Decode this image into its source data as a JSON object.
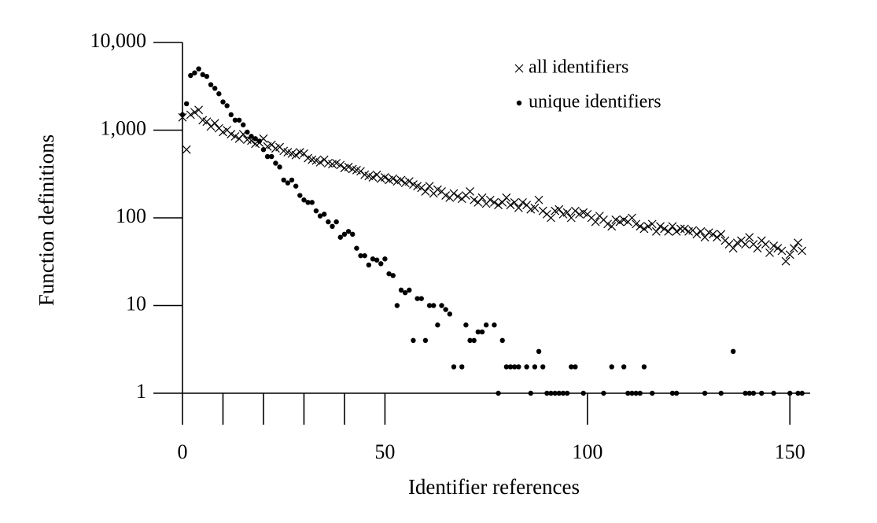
{
  "chart_data": {
    "type": "scatter",
    "x_label": "Identifier references",
    "y_label": "Function definitions",
    "yscale": "log",
    "xlim": [
      0,
      155
    ],
    "ylim": [
      1,
      10000
    ],
    "xticks": [
      0,
      50,
      100,
      150
    ],
    "xminor_ticks": [
      10,
      20,
      30,
      40
    ],
    "yticks": [
      {
        "value": 10000,
        "label": "10,000"
      },
      {
        "value": 1000,
        "label": "1,000"
      },
      100,
      10,
      1
    ],
    "legend": "upper right",
    "series": [
      {
        "name": "all identifiers",
        "marker": "x",
        "color": "#000000",
        "x": [
          0,
          1,
          2,
          3,
          4,
          5,
          6,
          7,
          8,
          9,
          10,
          11,
          12,
          13,
          14,
          15,
          16,
          17,
          18,
          19,
          20,
          21,
          22,
          23,
          24,
          25,
          26,
          27,
          28,
          29,
          30,
          31,
          32,
          33,
          34,
          35,
          36,
          37,
          38,
          39,
          40,
          41,
          42,
          43,
          44,
          45,
          46,
          47,
          48,
          49,
          50,
          51,
          52,
          53,
          54,
          55,
          56,
          57,
          58,
          59,
          60,
          61,
          62,
          63,
          64,
          65,
          66,
          67,
          68,
          69,
          70,
          71,
          72,
          73,
          74,
          75,
          76,
          77,
          78,
          79,
          80,
          81,
          82,
          83,
          84,
          85,
          86,
          87,
          88,
          89,
          90,
          91,
          92,
          93,
          94,
          95,
          96,
          97,
          98,
          99,
          100,
          101,
          102,
          103,
          104,
          105,
          106,
          107,
          108,
          109,
          110,
          111,
          112,
          113,
          114,
          115,
          116,
          117,
          118,
          119,
          120,
          121,
          122,
          123,
          124,
          125,
          126,
          127,
          128,
          129,
          130,
          131,
          132,
          133,
          134,
          135,
          136,
          137,
          138,
          139,
          140,
          141,
          142,
          143,
          144,
          145,
          146,
          147,
          148,
          149,
          150,
          151,
          152,
          153
        ],
        "values": [
          1400,
          600,
          1500,
          1600,
          1700,
          1300,
          1250,
          1100,
          1200,
          1050,
          950,
          1000,
          900,
          850,
          800,
          900,
          780,
          760,
          700,
          720,
          800,
          650,
          680,
          620,
          640,
          580,
          560,
          540,
          520,
          560,
          540,
          480,
          460,
          450,
          430,
          460,
          420,
          410,
          420,
          400,
          370,
          380,
          360,
          350,
          340,
          310,
          300,
          290,
          310,
          280,
          290,
          270,
          280,
          260,
          270,
          250,
          260,
          240,
          230,
          220,
          200,
          230,
          190,
          210,
          200,
          180,
          170,
          190,
          175,
          165,
          180,
          200,
          160,
          150,
          170,
          145,
          160,
          150,
          140,
          150,
          170,
          140,
          150,
          130,
          150,
          140,
          125,
          130,
          160,
          120,
          110,
          100,
          120,
          125,
          110,
          115,
          100,
          120,
          110,
          115,
          110,
          100,
          90,
          105,
          95,
          85,
          80,
          95,
          90,
          95,
          90,
          100,
          85,
          80,
          75,
          80,
          85,
          70,
          80,
          75,
          70,
          80,
          70,
          75,
          75,
          70,
          72,
          65,
          70,
          60,
          68,
          65,
          60,
          65,
          55,
          50,
          45,
          52,
          55,
          50,
          60,
          50,
          45,
          55,
          50,
          40,
          48,
          45,
          42,
          32,
          38,
          45,
          52,
          42
        ]
      },
      {
        "name": "unique identifiers",
        "marker": "dot",
        "color": "#000000",
        "x": [
          0,
          1,
          2,
          3,
          4,
          5,
          6,
          7,
          8,
          9,
          10,
          11,
          12,
          13,
          14,
          15,
          16,
          17,
          18,
          19,
          20,
          21,
          22,
          23,
          24,
          25,
          26,
          27,
          28,
          29,
          30,
          31,
          32,
          33,
          34,
          35,
          36,
          37,
          38,
          39,
          40,
          41,
          42,
          43,
          44,
          45,
          46,
          47,
          48,
          49,
          50,
          51,
          52,
          53,
          54,
          55,
          56,
          57,
          58,
          59,
          60,
          61,
          62,
          63,
          64,
          65,
          66,
          67,
          69,
          70,
          71,
          72,
          73,
          74,
          75,
          77,
          78,
          79,
          80,
          81,
          82,
          83,
          85,
          86,
          87,
          88,
          89,
          90,
          91,
          92,
          93,
          94,
          95,
          96,
          97,
          99,
          104,
          106,
          109,
          110,
          111,
          112,
          113,
          114,
          116,
          121,
          122,
          129,
          133,
          136,
          139,
          140,
          141,
          143,
          146,
          150,
          152,
          153
        ],
        "values": [
          1500,
          2000,
          4200,
          4500,
          5000,
          4300,
          4100,
          3300,
          3000,
          2600,
          2100,
          1900,
          1500,
          1300,
          1300,
          1150,
          950,
          850,
          800,
          750,
          600,
          500,
          500,
          420,
          380,
          270,
          250,
          270,
          230,
          180,
          160,
          150,
          150,
          120,
          105,
          110,
          90,
          80,
          90,
          60,
          65,
          70,
          65,
          45,
          37,
          37,
          29,
          34,
          33,
          30,
          34,
          23,
          22,
          10,
          15,
          14,
          15,
          4,
          12,
          12,
          4,
          10,
          10,
          6,
          10,
          9,
          8,
          2,
          2,
          6,
          4,
          4,
          5,
          5,
          6,
          6,
          1,
          4,
          2,
          2,
          2,
          2,
          2,
          1,
          2,
          3,
          2,
          1,
          1,
          1,
          1,
          1,
          1,
          2,
          2,
          1,
          1,
          2,
          2,
          1,
          1,
          1,
          1,
          2,
          1,
          1,
          1,
          1,
          1,
          3,
          1,
          1,
          1,
          1,
          1,
          1,
          1,
          1
        ]
      }
    ]
  }
}
